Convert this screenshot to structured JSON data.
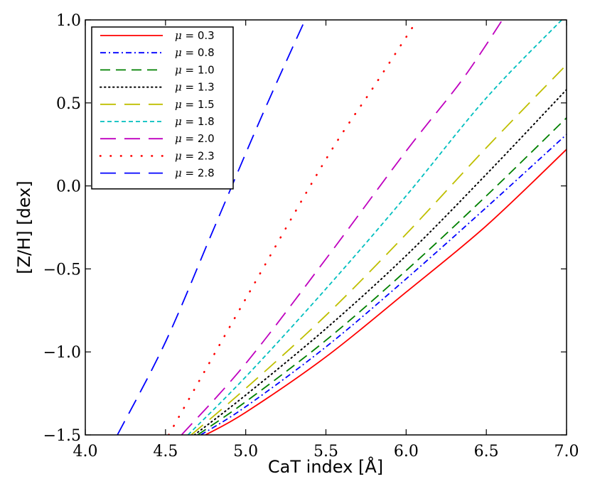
{
  "chart_data": {
    "type": "line",
    "title": "",
    "xlabel": "CaT index [Å]",
    "ylabel": "[Z/H] [dex]",
    "xlim": [
      4.0,
      7.0
    ],
    "ylim": [
      -1.5,
      1.0
    ],
    "x_ticks": [
      4.0,
      4.5,
      5.0,
      5.5,
      6.0,
      6.5,
      7.0
    ],
    "x_tick_labels": [
      "4.0",
      "4.5",
      "5.0",
      "5.5",
      "6.0",
      "6.5",
      "7.0"
    ],
    "y_ticks": [
      -1.5,
      -1.0,
      -0.5,
      0.0,
      0.5,
      1.0
    ],
    "y_tick_labels": [
      "−1.5",
      "−1.0",
      "−0.5",
      "0.0",
      "0.5",
      "1.0"
    ],
    "grid": false,
    "legend_position": "top-left",
    "series": [
      {
        "name": "μ = 0.3",
        "legend_symbol": "μ",
        "legend_value": "= 0.3",
        "color": "#ff0000",
        "style": "solid",
        "x": [
          4.75,
          5.0,
          5.5,
          6.0,
          6.5,
          7.0
        ],
        "y": [
          -1.5,
          -1.364,
          -1.03,
          -0.64,
          -0.24,
          0.22
        ]
      },
      {
        "name": "μ = 0.8",
        "legend_symbol": "μ",
        "legend_value": "= 0.8",
        "color": "#0000ff",
        "style": "dashdot",
        "x": [
          4.72,
          5.0,
          5.5,
          6.0,
          6.5,
          7.0
        ],
        "y": [
          -1.5,
          -1.33,
          -0.97,
          -0.56,
          -0.13,
          0.31
        ]
      },
      {
        "name": "μ = 1.0",
        "legend_symbol": "μ",
        "legend_value": "= 1.0",
        "color": "#008000",
        "style": "dashed",
        "x": [
          4.7,
          5.0,
          5.5,
          6.0,
          6.5,
          7.0
        ],
        "y": [
          -1.5,
          -1.3,
          -0.93,
          -0.51,
          -0.06,
          0.41
        ]
      },
      {
        "name": "μ = 1.3",
        "legend_symbol": "μ",
        "legend_value": "= 1.3",
        "color": "#000000",
        "style": "dotted",
        "x": [
          4.68,
          5.0,
          5.5,
          6.0,
          6.5,
          7.0
        ],
        "y": [
          -1.5,
          -1.26,
          -0.86,
          -0.42,
          0.07,
          0.58
        ]
      },
      {
        "name": "μ = 1.5",
        "legend_symbol": "μ",
        "legend_value": "= 1.5",
        "color": "#bfbf00",
        "style": "longdash",
        "x": [
          4.66,
          5.0,
          5.5,
          6.0,
          6.5,
          7.0
        ],
        "y": [
          -1.5,
          -1.22,
          -0.78,
          -0.29,
          0.23,
          0.73
        ]
      },
      {
        "name": "μ = 1.8",
        "legend_symbol": "μ",
        "legend_value": "= 1.8",
        "color": "#00bfbf",
        "style": "shortdash",
        "x": [
          4.64,
          5.0,
          5.5,
          6.0,
          6.5,
          6.97
        ],
        "y": [
          -1.5,
          -1.15,
          -0.62,
          -0.06,
          0.53,
          1.0
        ]
      },
      {
        "name": "μ = 2.0",
        "legend_symbol": "μ",
        "legend_value": "= 2.0",
        "color": "#bf00bf",
        "style": "longdash",
        "x": [
          4.6,
          5.0,
          5.5,
          6.0,
          6.35,
          6.6
        ],
        "y": [
          -1.5,
          -1.07,
          -0.44,
          0.21,
          0.64,
          1.0
        ]
      },
      {
        "name": "μ = 2.3",
        "legend_symbol": "μ",
        "legend_value": "= 2.3",
        "color": "#ff0000",
        "style": "sparsedot",
        "x": [
          4.52,
          5.0,
          5.5,
          5.8,
          6.07
        ],
        "y": [
          -1.5,
          -0.68,
          0.16,
          0.6,
          1.0
        ]
      },
      {
        "name": "μ = 2.8",
        "legend_symbol": "μ",
        "legend_value": "= 2.8",
        "color": "#0000ff",
        "style": "longdash",
        "x": [
          4.2,
          4.5,
          4.8,
          5.1,
          5.37
        ],
        "y": [
          -1.5,
          -0.94,
          -0.26,
          0.42,
          1.0
        ]
      }
    ]
  }
}
